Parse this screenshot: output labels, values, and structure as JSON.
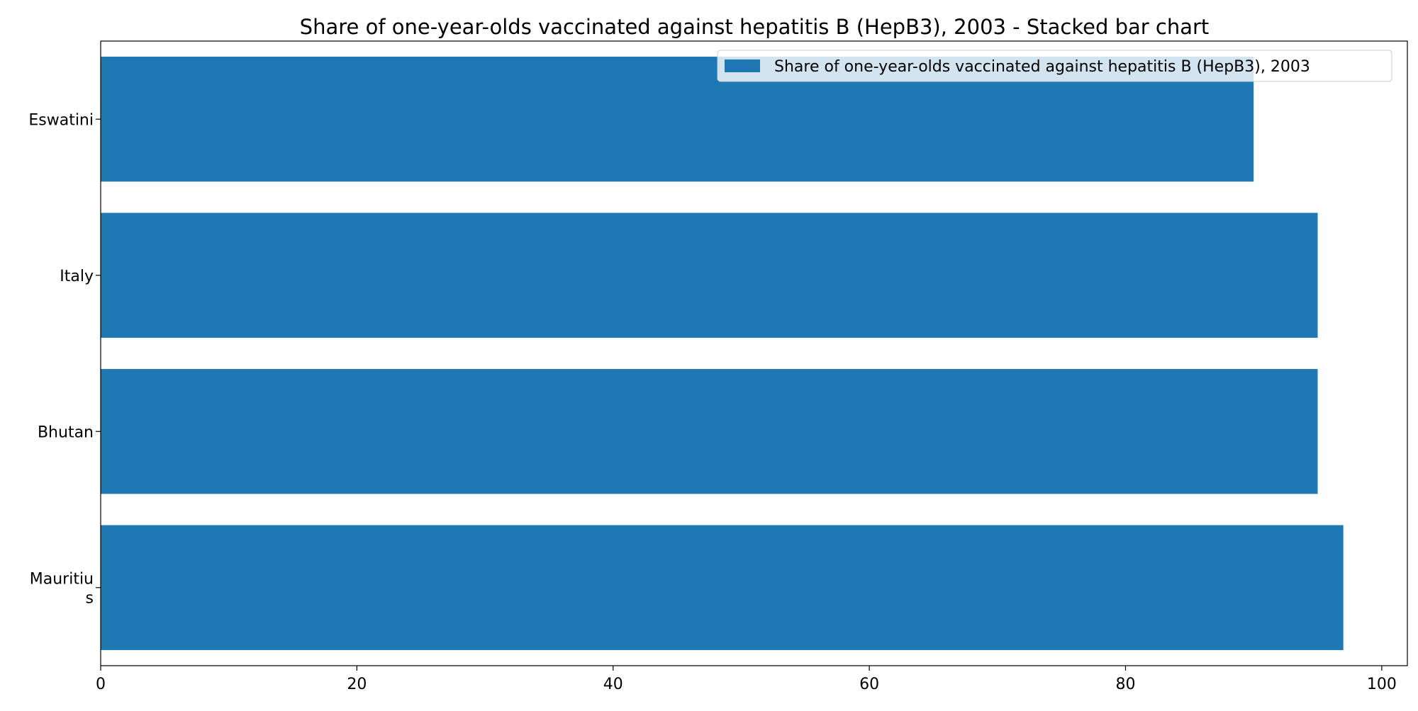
{
  "chart_data": {
    "type": "bar",
    "orientation": "horizontal",
    "title": "Share of one-year-olds vaccinated against hepatitis B (HepB3), 2003 - Stacked bar chart",
    "categories": [
      "Eswatini",
      "Italy",
      "Bhutan",
      "Mauritius"
    ],
    "category_tick_labels": [
      [
        "Eswatini"
      ],
      [
        "Italy"
      ],
      [
        "Bhutan"
      ],
      [
        "Mauritiu",
        "s"
      ]
    ],
    "series": [
      {
        "name": "Share of one-year-olds vaccinated against hepatitis B (HepB3), 2003",
        "values": [
          90,
          95,
          95,
          97
        ],
        "color": "#1f77b4"
      }
    ],
    "xlim": [
      0,
      102
    ],
    "x_ticks": [
      0,
      20,
      40,
      60,
      80,
      100
    ],
    "xlabel": "",
    "ylabel": "",
    "grid": false,
    "legend_position": "top-right"
  }
}
